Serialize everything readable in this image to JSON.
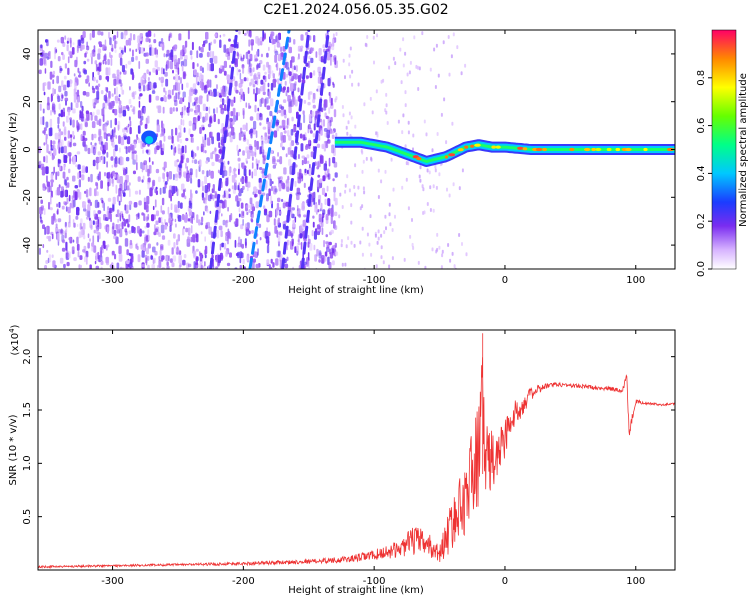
{
  "title": "C2E1.2024.056.05.35.G02",
  "colors": {
    "snr_line": "#ee3333",
    "spectrogram_noise": "#7a2df0",
    "spectrogram_ridge": "#22dd88"
  },
  "chart_data": [
    {
      "type": "heatmap",
      "xlabel": "Height of straight line (km)",
      "ylabel": "Frequency (Hz)",
      "xlim": [
        -357,
        130
      ],
      "ylim": [
        -50,
        50
      ],
      "xticks": [
        -300,
        -200,
        -100,
        0,
        100
      ],
      "yticks": [
        -40,
        -20,
        0,
        20,
        40
      ],
      "xtick_labels": [
        "-300",
        "-200",
        "-100",
        "0",
        "100"
      ],
      "ytick_labels": [
        "-40",
        "-20",
        "0",
        "20",
        "40"
      ],
      "colorbar": {
        "label": "Normalized spectral amplitude",
        "range": [
          0,
          1
        ],
        "ticks": [
          0.0,
          0.2,
          0.4,
          0.6,
          0.8
        ],
        "tick_labels": [
          "0.0",
          "0.2",
          "0.4",
          "0.6",
          "0.8"
        ],
        "colormap": "white-violet-blue-cyan-green-yellow-red"
      },
      "features": {
        "dominant_ridge": {
          "x_range": [
            -130,
            130
          ],
          "freq_hz": [
            [
              -130,
              3
            ],
            [
              -110,
              3
            ],
            [
              -90,
              1
            ],
            [
              -75,
              -2
            ],
            [
              -60,
              -5
            ],
            [
              -45,
              -3
            ],
            [
              -30,
              1
            ],
            [
              -20,
              2
            ],
            [
              -10,
              1
            ],
            [
              0,
              1
            ],
            [
              20,
              0
            ],
            [
              50,
              0
            ],
            [
              90,
              0
            ],
            [
              130,
              0
            ]
          ],
          "peak_amplitude": 0.9
        },
        "noise_region_x": [
          -357,
          -130
        ],
        "diagonal_streaks": [
          [
            [
              -225,
              -50
            ],
            [
              -205,
              50
            ]
          ],
          [
            [
              -195,
              -50
            ],
            [
              -165,
              50
            ]
          ],
          [
            [
              -170,
              -50
            ],
            [
              -150,
              50
            ]
          ],
          [
            [
              -155,
              -50
            ],
            [
              -135,
              50
            ]
          ]
        ]
      }
    },
    {
      "type": "line",
      "xlabel": "Height of straight line (km)",
      "ylabel": "SNR (10 * v/v)",
      "y_multiplier": "(x10",
      "y_multiplier_exp": "4",
      "y_multiplier_close": ")",
      "xlim": [
        -357,
        130
      ],
      "ylim": [
        0,
        2.25
      ],
      "xticks": [
        -300,
        -200,
        -100,
        0,
        100
      ],
      "yticks": [
        0.5,
        1.0,
        1.5,
        2.0
      ],
      "xtick_labels": [
        "-300",
        "-200",
        "-100",
        "0",
        "100"
      ],
      "ytick_labels": [
        "0.5",
        "1.0",
        "1.5",
        "2.0"
      ],
      "series": [
        {
          "x": [
            -357,
            -300,
            -250,
            -200,
            -150,
            -120,
            -100,
            -80,
            -70,
            -60,
            -50,
            -45,
            -40,
            -35,
            -30,
            -25,
            -20,
            -18,
            -15,
            -10,
            -5,
            0,
            5,
            10,
            20,
            30,
            40,
            50,
            60,
            70,
            80,
            90,
            93,
            95,
            100,
            110,
            120,
            130
          ],
          "y": [
            0.03,
            0.04,
            0.05,
            0.06,
            0.08,
            0.1,
            0.14,
            0.2,
            0.28,
            0.25,
            0.15,
            0.3,
            0.45,
            0.55,
            0.7,
            0.9,
            1.1,
            1.8,
            1.05,
            1.0,
            1.1,
            1.25,
            1.4,
            1.5,
            1.65,
            1.72,
            1.74,
            1.73,
            1.72,
            1.71,
            1.7,
            1.68,
            1.85,
            1.3,
            1.58,
            1.56,
            1.55,
            1.56
          ],
          "noise_amplitude": [
            0.01,
            0.01,
            0.01,
            0.015,
            0.02,
            0.03,
            0.05,
            0.08,
            0.14,
            0.12,
            0.08,
            0.18,
            0.25,
            0.3,
            0.35,
            0.45,
            0.5,
            0.4,
            0.45,
            0.3,
            0.25,
            0.2,
            0.15,
            0.12,
            0.06,
            0.03,
            0.02,
            0.02,
            0.02,
            0.02,
            0.02,
            0.03,
            0.05,
            0.05,
            0.02,
            0.01,
            0.01,
            0.01
          ]
        }
      ],
      "annotations": [
        {
          "x": -17,
          "y": 2.22,
          "note": "spike"
        }
      ]
    }
  ]
}
